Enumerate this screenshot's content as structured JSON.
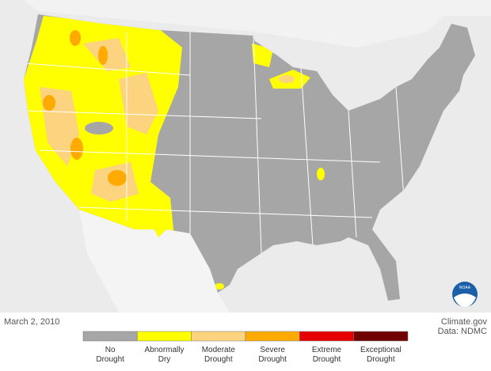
{
  "map": {
    "date": "March 2, 2010",
    "source": "Climate.gov",
    "data_credit": "Data: NDMC",
    "logo_text": "NOAA",
    "legend": [
      {
        "lines": [
          "No",
          "Drought"
        ],
        "color": "#a6a6a6"
      },
      {
        "lines": [
          "Abnormally",
          "Dry"
        ],
        "color": "#ffff00"
      },
      {
        "lines": [
          "Moderate",
          "Drought"
        ],
        "color": "#fcd37f"
      },
      {
        "lines": [
          "Severe",
          "Drought"
        ],
        "color": "#ffaa00"
      },
      {
        "lines": [
          "Extreme",
          "Drought"
        ],
        "color": "#e60000"
      },
      {
        "lines": [
          "Exceptional",
          "Drought"
        ],
        "color": "#730000"
      }
    ]
  }
}
